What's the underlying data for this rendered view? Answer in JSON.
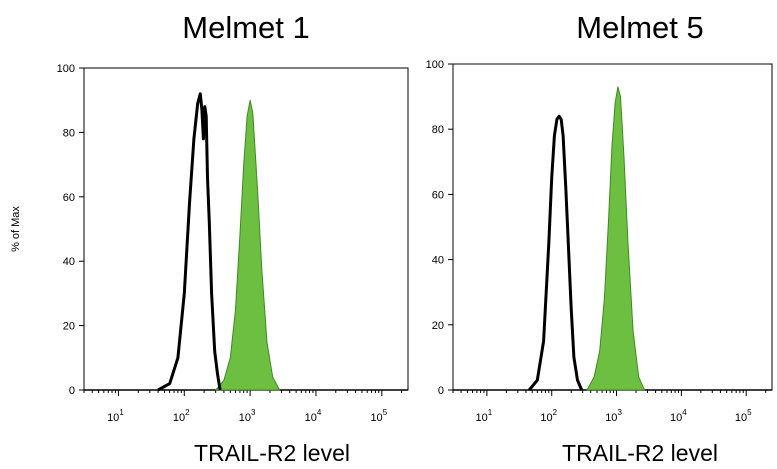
{
  "chart_data": [
    {
      "type": "histogram",
      "title": "Melmet 1",
      "xlabel": "TRAIL-R2 level",
      "ylabel": "% of Max",
      "xscale": "log",
      "xlim": [
        3,
        250000
      ],
      "ylim": [
        0,
        100
      ],
      "yticks": [
        "0",
        "20",
        "40",
        "60",
        "80",
        "100"
      ],
      "xticks": [
        {
          "base": "10",
          "exp": "1"
        },
        {
          "base": "10",
          "exp": "2"
        },
        {
          "base": "10",
          "exp": "3"
        },
        {
          "base": "10",
          "exp": "4"
        },
        {
          "base": "10",
          "exp": "5"
        }
      ],
      "series": [
        {
          "style": "outline",
          "color": "#000000",
          "x": [
            40,
            60,
            80,
            100,
            120,
            140,
            160,
            175,
            185,
            195,
            205,
            215,
            225,
            240,
            260,
            290,
            320,
            350
          ],
          "y": [
            0,
            2,
            10,
            30,
            58,
            78,
            89,
            92,
            87,
            78,
            88,
            85,
            66,
            52,
            30,
            12,
            5,
            0
          ]
        },
        {
          "style": "filled",
          "color": "#6cbf40",
          "x": [
            300,
            400,
            500,
            600,
            700,
            800,
            900,
            1000,
            1100,
            1300,
            1500,
            1800,
            2200,
            2800
          ],
          "y": [
            0,
            3,
            10,
            25,
            48,
            70,
            85,
            90,
            86,
            62,
            38,
            15,
            4,
            0
          ]
        }
      ]
    },
    {
      "type": "histogram",
      "title": "Melmet 5",
      "xlabel": "TRAIL-R2 level",
      "xscale": "log",
      "xlim": [
        3,
        250000
      ],
      "ylim": [
        0,
        100
      ],
      "yticks": [
        "0",
        "20",
        "40",
        "60",
        "80",
        "100"
      ],
      "xticks": [
        {
          "base": "10",
          "exp": "1"
        },
        {
          "base": "10",
          "exp": "2"
        },
        {
          "base": "10",
          "exp": "3"
        },
        {
          "base": "10",
          "exp": "4"
        },
        {
          "base": "10",
          "exp": "5"
        }
      ],
      "series": [
        {
          "style": "outline",
          "color": "#000000",
          "x": [
            45,
            60,
            75,
            90,
            100,
            110,
            120,
            130,
            140,
            150,
            165,
            180,
            200,
            220,
            250,
            290
          ],
          "y": [
            0,
            3,
            15,
            45,
            65,
            78,
            83,
            84,
            83,
            78,
            62,
            45,
            25,
            10,
            3,
            0
          ]
        },
        {
          "style": "filled",
          "color": "#6cbf40",
          "x": [
            350,
            450,
            550,
            650,
            750,
            850,
            950,
            1050,
            1150,
            1300,
            1500,
            1800,
            2200,
            2700
          ],
          "y": [
            0,
            4,
            12,
            28,
            52,
            75,
            88,
            93,
            90,
            72,
            45,
            18,
            4,
            0
          ]
        }
      ]
    }
  ]
}
